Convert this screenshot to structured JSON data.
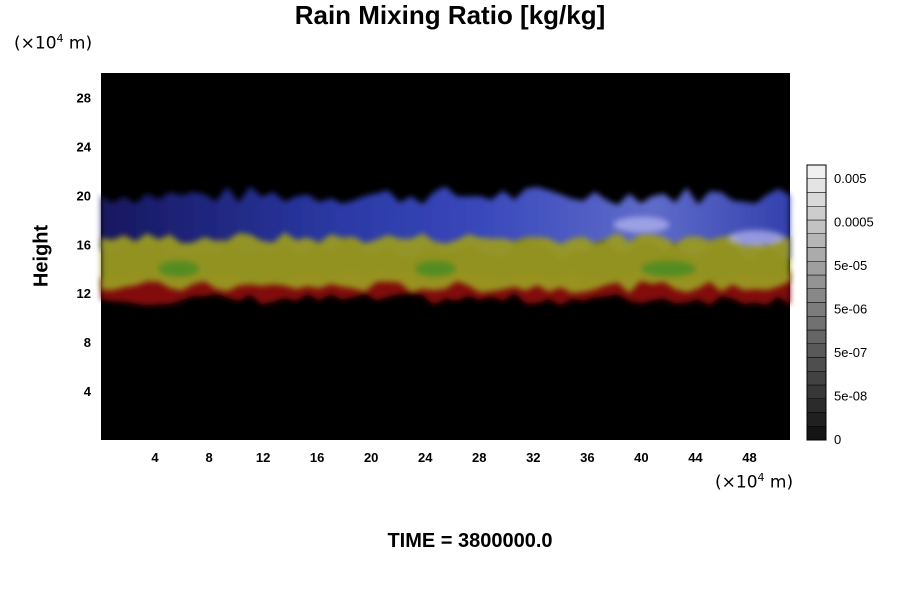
{
  "chart_data": {
    "type": "heatmap",
    "title": "Rain Mixing Ratio [kg/kg]",
    "xlabel": "",
    "ylabel": "Height",
    "x_unit": "(×10⁴ m)",
    "y_unit": "(×10⁴ m)",
    "xlim": [
      0,
      51
    ],
    "ylim": [
      0,
      30
    ],
    "x_ticks": [
      4,
      8,
      12,
      16,
      20,
      24,
      28,
      32,
      36,
      40,
      44,
      48
    ],
    "y_ticks": [
      4,
      8,
      12,
      16,
      20,
      24,
      28
    ],
    "layers": [
      {
        "color": "red",
        "y_range": [
          11.5,
          13.5
        ]
      },
      {
        "color": "yellow",
        "y_range": [
          12.5,
          16.5
        ]
      },
      {
        "color": "blue",
        "y_range": [
          15.5,
          20
        ]
      }
    ],
    "colorbar": {
      "labels": [
        "0.005",
        "0.0005",
        "5e-05",
        "5e-06",
        "5e-07",
        "5e-08",
        "0"
      ],
      "levels": 20
    },
    "caption": "TIME = 3800000.0"
  }
}
